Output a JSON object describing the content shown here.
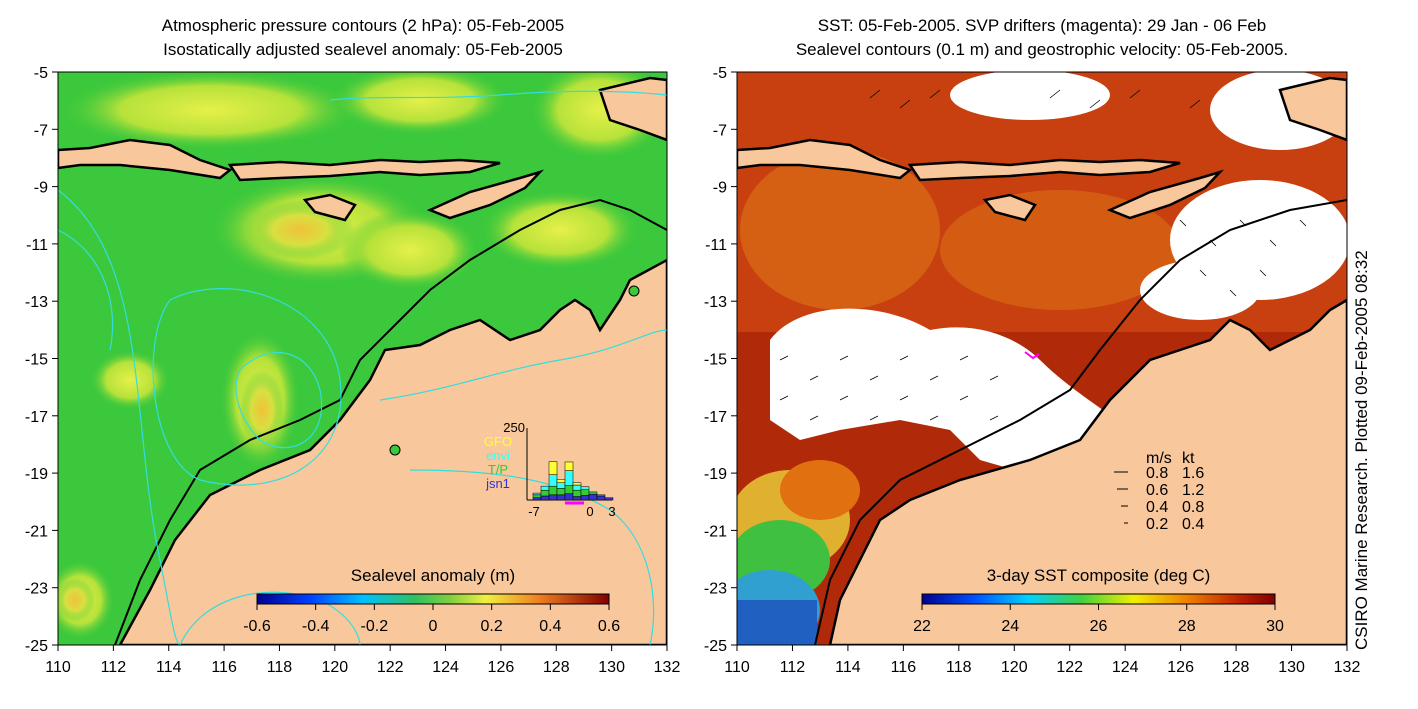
{
  "left_panel": {
    "title_line1": "Atmospheric pressure contours (2 hPa): 05-Feb-2005",
    "title_line2": "Isostatically adjusted sealevel anomaly: 05-Feb-2005",
    "y_ticks": [
      "-5",
      "-7",
      "-9",
      "-11",
      "-13",
      "-15",
      "-17",
      "-19",
      "-21",
      "-23",
      "-25"
    ],
    "x_ticks": [
      "110",
      "112",
      "114",
      "116",
      "118",
      "120",
      "122",
      "124",
      "126",
      "128",
      "130",
      "132"
    ],
    "colorbar": {
      "label": "Sealevel anomaly (m)",
      "ticks": [
        "-0.6",
        "-0.4",
        "-0.2",
        "0",
        "0.2",
        "0.4",
        "0.6"
      ]
    },
    "inset": {
      "ymax": "250",
      "legend": [
        {
          "label": "GFO",
          "color": "#ffff33"
        },
        {
          "label": "envi",
          "color": "#33ffff"
        },
        {
          "label": "T/P",
          "color": "#33cc33"
        },
        {
          "label": "jsn1",
          "color": "#3333cc"
        }
      ],
      "x_ticks": [
        "-7",
        "0",
        "3"
      ],
      "bars": [
        {
          "stack": [
            8,
            10,
            6,
            0
          ]
        },
        {
          "stack": [
            14,
            20,
            14,
            0
          ]
        },
        {
          "stack": [
            18,
            30,
            40,
            45
          ]
        },
        {
          "stack": [
            18,
            22,
            20,
            12
          ]
        },
        {
          "stack": [
            22,
            28,
            52,
            30
          ]
        },
        {
          "stack": [
            12,
            22,
            18,
            8
          ]
        },
        {
          "stack": [
            16,
            20,
            10,
            0
          ]
        },
        {
          "stack": [
            20,
            8,
            0,
            0
          ]
        },
        {
          "stack": [
            14,
            4,
            0,
            0
          ]
        },
        {
          "stack": [
            8,
            0,
            0,
            0
          ]
        }
      ]
    }
  },
  "right_panel": {
    "title_line1": "SST: 05-Feb-2005. SVP drifters (magenta): 29 Jan - 06 Feb",
    "title_line2": "Sealevel contours (0.1 m) and geostrophic velocity: 05-Feb-2005.",
    "y_ticks": [
      "-5",
      "-7",
      "-9",
      "-11",
      "-13",
      "-15",
      "-17",
      "-19",
      "-21",
      "-23",
      "-25"
    ],
    "x_ticks": [
      "110",
      "112",
      "114",
      "116",
      "118",
      "120",
      "122",
      "124",
      "126",
      "128",
      "130",
      "132"
    ],
    "colorbar": {
      "label": "3-day SST composite (deg C)",
      "ticks": [
        "22",
        "24",
        "26",
        "28",
        "30"
      ]
    },
    "velocity_key": {
      "header_ms": "m/s",
      "header_kt": "kt",
      "rows": [
        {
          "ms": "0.8",
          "kt": "1.6"
        },
        {
          "ms": "0.6",
          "kt": "1.2"
        },
        {
          "ms": "0.4",
          "kt": "0.8"
        },
        {
          "ms": "0.2",
          "kt": "0.4"
        }
      ]
    }
  },
  "credit": "CSIRO Marine Research.  Plotted 09-Feb-2005 08:32",
  "colors": {
    "land": "#f9c79c",
    "sla_ocean": "#3cc83c",
    "sst_warm": "#b02a0a",
    "sst_mid": "#e07010",
    "contour_cyan": "#33dddd"
  }
}
